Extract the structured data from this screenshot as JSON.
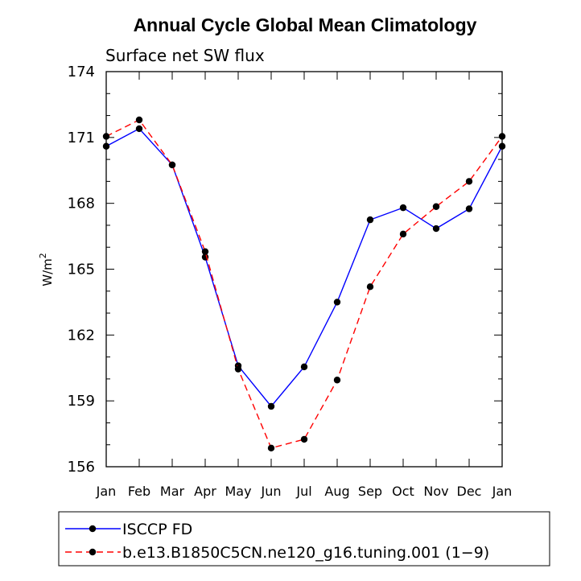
{
  "chart_data": {
    "type": "line",
    "title": "Annual Cycle Global Mean Climatology",
    "subtitle": "Surface net SW flux",
    "xlabel": "",
    "ylabel": "W/m",
    "ylabel_superscript": "2",
    "categories": [
      "Jan",
      "Feb",
      "Mar",
      "Apr",
      "May",
      "Jun",
      "Jul",
      "Aug",
      "Sep",
      "Oct",
      "Nov",
      "Dec",
      "Jan"
    ],
    "ylim": [
      156,
      174
    ],
    "yticks": [
      156,
      159,
      162,
      165,
      168,
      171,
      174
    ],
    "series": [
      {
        "name": "ISCCP FD",
        "color": "#0000ff",
        "dash": "solid",
        "values": [
          170.6,
          171.4,
          169.75,
          165.55,
          160.6,
          158.75,
          160.55,
          163.5,
          167.25,
          167.8,
          166.85,
          167.75,
          170.6
        ]
      },
      {
        "name": "b.e13.B1850C5CN.ne120_g16.tuning.001 (1−9)",
        "color": "#ff0000",
        "dash": "dashed",
        "values": [
          171.05,
          171.8,
          169.75,
          165.8,
          160.45,
          156.85,
          157.25,
          159.95,
          164.2,
          166.6,
          167.85,
          169.0,
          171.05
        ]
      }
    ],
    "legend_position": "bottom"
  }
}
